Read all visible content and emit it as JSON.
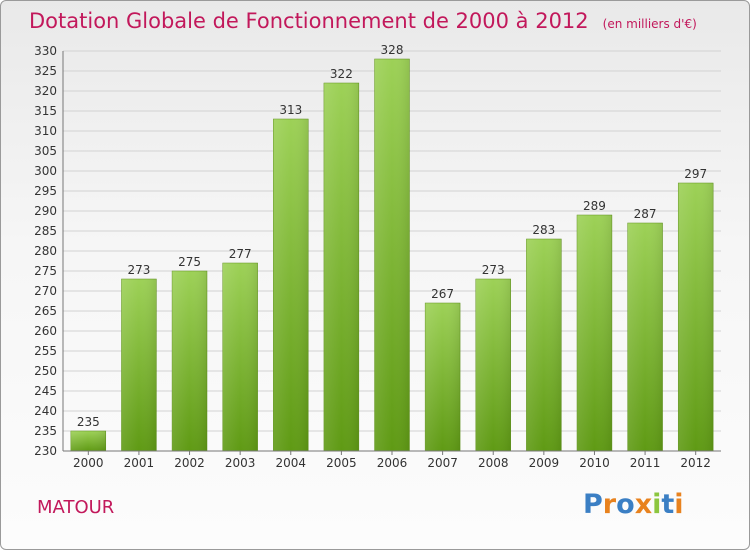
{
  "header": {
    "title": "Dotation Globale de Fonctionnement de 2000 à 2012",
    "subtitle": "(en milliers d'€)"
  },
  "footer": {
    "commune": "MATOUR",
    "logo": {
      "text": "Proxiti",
      "letters": [
        {
          "ch": "P",
          "color": "#3b7fc4"
        },
        {
          "ch": "r",
          "color": "#e8821e"
        },
        {
          "ch": "o",
          "color": "#3b7fc4"
        },
        {
          "ch": "x",
          "color": "#e8821e"
        },
        {
          "ch": "i",
          "color": "#8cc63f"
        },
        {
          "ch": "t",
          "color": "#3b7fc4"
        },
        {
          "ch": "i",
          "color": "#e8821e"
        }
      ]
    }
  },
  "chart_data": {
    "type": "bar",
    "title": "Dotation Globale de Fonctionnement de 2000 à 2012",
    "subtitle": "(en milliers d'€)",
    "categories": [
      "2000",
      "2001",
      "2002",
      "2003",
      "2004",
      "2005",
      "2006",
      "2007",
      "2008",
      "2009",
      "2010",
      "2011",
      "2012"
    ],
    "values": [
      235,
      273,
      275,
      277,
      313,
      322,
      328,
      267,
      273,
      283,
      289,
      287,
      297
    ],
    "ylim": [
      230,
      330
    ],
    "ytick_step": 5,
    "grid": true,
    "xlabel": "",
    "ylabel": "",
    "bar_color_top": "#9dd157",
    "bar_color_bottom": "#5f9a14",
    "title_color": "#c2185b"
  }
}
